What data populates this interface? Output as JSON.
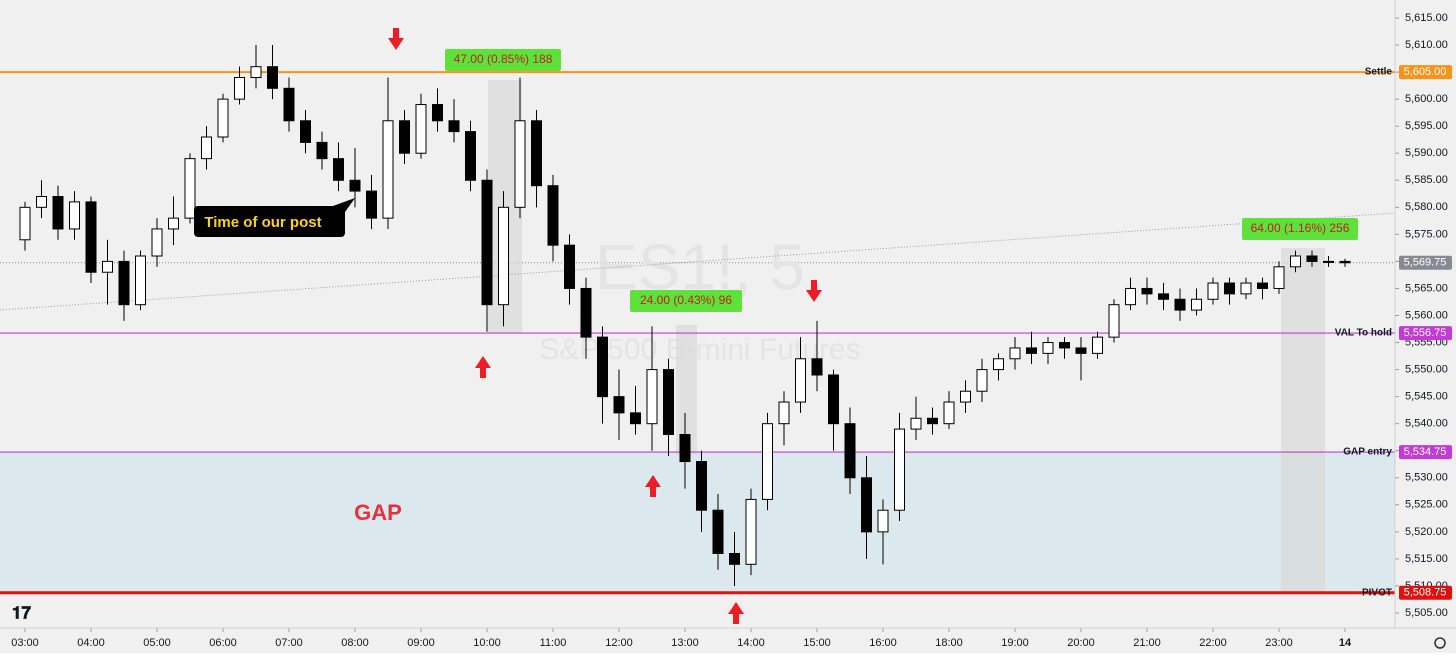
{
  "chart_data": {
    "type": "candlestick",
    "watermark": {
      "symbol": "ES1!, 5",
      "description": "S&P 500 E-mini Futures"
    },
    "x": [
      "03:00",
      "03:15",
      "03:30",
      "03:45",
      "04:00",
      "04:15",
      "04:30",
      "04:45",
      "05:00",
      "05:15",
      "05:30",
      "05:45",
      "06:00",
      "06:15",
      "06:30",
      "06:45",
      "07:00",
      "07:15",
      "07:30",
      "07:45",
      "08:00",
      "08:15",
      "08:30",
      "08:45",
      "09:00",
      "09:15",
      "09:30",
      "09:45",
      "10:00",
      "10:15",
      "10:30",
      "10:45",
      "11:00",
      "11:15",
      "11:30",
      "11:45",
      "12:00",
      "12:15",
      "12:30",
      "12:45",
      "13:00",
      "13:15",
      "13:30",
      "13:45",
      "14:00",
      "14:15",
      "14:30",
      "14:45",
      "15:00",
      "15:15",
      "15:30",
      "15:45",
      "16:00",
      "16:15",
      "16:30",
      "16:45",
      "18:00",
      "18:15",
      "18:30",
      "18:45",
      "19:00",
      "19:15",
      "19:30",
      "19:45",
      "20:00",
      "20:15",
      "20:30",
      "20:45",
      "21:00",
      "21:15",
      "21:30",
      "21:45",
      "22:00",
      "22:15",
      "22:30",
      "22:45",
      "23:00",
      "23:15",
      "23:30",
      "23:45",
      "14"
    ],
    "open": [
      5574,
      5580,
      5582,
      5576,
      5581,
      5568,
      5570,
      5562,
      5571,
      5576,
      5578,
      5589,
      5593,
      5600,
      5604,
      5606,
      5602,
      5596,
      5592,
      5589,
      5585,
      5583,
      5578,
      5596,
      5590,
      5599,
      5596,
      5594,
      5585,
      5562,
      5580,
      5596,
      5584,
      5573,
      5565,
      5556,
      5545,
      5542,
      5540,
      5550,
      5538,
      5533,
      5524,
      5516,
      5514,
      5526,
      5540,
      5544,
      5552,
      5549,
      5540,
      5530,
      5520,
      5524,
      5539,
      5541,
      5540,
      5544,
      5546,
      5550,
      5552,
      5554,
      5553,
      5555,
      5554,
      5553,
      5556,
      5562,
      5565,
      5564,
      5563,
      5561,
      5563,
      5566,
      5564,
      5566,
      5565,
      5569,
      5571,
      5570,
      5570
    ],
    "high": [
      5581,
      5585,
      5584,
      5583,
      5582,
      5574,
      5572,
      5572,
      5578,
      5582,
      5590,
      5595,
      5601,
      5606,
      5610,
      5610,
      5604,
      5598,
      5594,
      5592,
      5591,
      5586,
      5604,
      5598,
      5601,
      5602,
      5600,
      5596,
      5587,
      5583,
      5604,
      5598,
      5586,
      5575,
      5567,
      5558,
      5550,
      5547,
      5558,
      5552,
      5542,
      5535,
      5527,
      5520,
      5528,
      5542,
      5546,
      5556,
      5559,
      5550,
      5543,
      5534,
      5526,
      5542,
      5545,
      5543,
      5546,
      5548,
      5552,
      5553,
      5556,
      5557,
      5556,
      5556,
      5556,
      5557,
      5563,
      5567,
      5567,
      5566,
      5565,
      5565,
      5567,
      5567,
      5567,
      5567,
      5570,
      5572,
      5572,
      5571,
      5570.5
    ],
    "low": [
      5572,
      5578,
      5574,
      5574,
      5566,
      5562,
      5559,
      5561,
      5569,
      5573,
      5577,
      5587,
      5592,
      5599,
      5602,
      5600,
      5594,
      5590,
      5587,
      5583,
      5580,
      5576,
      5576,
      5588,
      5589,
      5594,
      5592,
      5583,
      5557,
      5558,
      5578,
      5580,
      5570,
      5562,
      5552,
      5540,
      5537,
      5538,
      5535,
      5534,
      5528,
      5520,
      5513,
      5510,
      5512,
      5524,
      5536,
      5542,
      5546,
      5535,
      5527,
      5515,
      5514,
      5522,
      5537,
      5538,
      5539,
      5542,
      5544,
      5548,
      5550,
      5551,
      5551,
      5552,
      5548,
      5552,
      5555,
      5561,
      5562,
      5561,
      5559,
      5560,
      5562,
      5562,
      5563,
      5563,
      5564,
      5568,
      5569,
      5569,
      5569
    ],
    "close": [
      5580,
      5582,
      5576,
      5581,
      5568,
      5570,
      5562,
      5571,
      5576,
      5578,
      5589,
      5593,
      5600,
      5604,
      5606,
      5602,
      5596,
      5592,
      5589,
      5585,
      5583,
      5578,
      5596,
      5590,
      5599,
      5596,
      5594,
      5585,
      5562,
      5580,
      5596,
      5584,
      5573,
      5565,
      5556,
      5545,
      5542,
      5540,
      5550,
      5538,
      5533,
      5524,
      5516,
      5514,
      5526,
      5540,
      5544,
      5552,
      5549,
      5540,
      5530,
      5520,
      5524,
      5539,
      5541,
      5540,
      5544,
      5546,
      5550,
      5552,
      5554,
      5553,
      5555,
      5554,
      5553,
      5556,
      5562,
      5565,
      5564,
      5563,
      5561,
      5563,
      5566,
      5564,
      5566,
      5565,
      5569,
      5571,
      5570,
      5570,
      5569.75
    ],
    "up_color": "#ffffff",
    "down_color": "#000000",
    "xticks": [
      "03:00",
      "04:00",
      "05:00",
      "06:00",
      "07:00",
      "08:00",
      "09:00",
      "10:00",
      "11:00",
      "12:00",
      "13:00",
      "14:00",
      "15:00",
      "16:00",
      "18:00",
      "19:00",
      "20:00",
      "21:00",
      "22:00",
      "23:00",
      "14"
    ],
    "ylim": [
      5505,
      5615
    ],
    "yticks": [
      {
        "value": 5505,
        "label": "5,505.00"
      },
      {
        "value": 5510,
        "label": "5,510.00"
      },
      {
        "value": 5515,
        "label": "5,515.00"
      },
      {
        "value": 5520,
        "label": "5,520.00"
      },
      {
        "value": 5525,
        "label": "5,525.00"
      },
      {
        "value": 5530,
        "label": "5,530.00"
      },
      {
        "value": 5535,
        "label": "5,535.00"
      },
      {
        "value": 5540,
        "label": "5,540.00"
      },
      {
        "value": 5545,
        "label": "5,545.00"
      },
      {
        "value": 5550,
        "label": "5,550.00"
      },
      {
        "value": 5555,
        "label": "5,555.00"
      },
      {
        "value": 5560,
        "label": "5,560.00"
      },
      {
        "value": 5565,
        "label": "5,565.00"
      },
      {
        "value": 5570,
        "label": "5,570.00"
      },
      {
        "value": 5575,
        "label": "5,575.00"
      },
      {
        "value": 5580,
        "label": "5,580.00"
      },
      {
        "value": 5585,
        "label": "5,585.00"
      },
      {
        "value": 5590,
        "label": "5,590.00"
      },
      {
        "value": 5595,
        "label": "5,595.00"
      },
      {
        "value": 5600,
        "label": "5,600.00"
      },
      {
        "value": 5605,
        "label": "5,605.00"
      },
      {
        "value": 5610,
        "label": "5,610.00"
      },
      {
        "value": 5615,
        "label": "5,615.00"
      }
    ],
    "levels": [
      {
        "name": "Settle",
        "value": 5605,
        "label": "5,605.00",
        "color": "#f7931a"
      },
      {
        "name": "VAL To hold",
        "value": 5556.75,
        "label": "5,556.75",
        "color": "#c23bd4"
      },
      {
        "name": "GAP entry",
        "value": 5534.75,
        "label": "5,534.75",
        "color": "#c23bd4"
      },
      {
        "name": "PIVOT",
        "value": 5508.75,
        "label": "5,508.75",
        "color": "#e01010"
      }
    ],
    "last_price": {
      "value": 5569.75,
      "label": "5,569.75",
      "color": "#868993"
    },
    "gap_zone": {
      "label": "GAP",
      "color": "#dbe9ef"
    },
    "annotations": [
      {
        "text": "47.00 (0.85%) 188"
      },
      {
        "text": "24.00 (0.43%) 96"
      },
      {
        "text": "64.00 (1.16%) 256"
      },
      {
        "text": "Time of our post"
      }
    ]
  }
}
